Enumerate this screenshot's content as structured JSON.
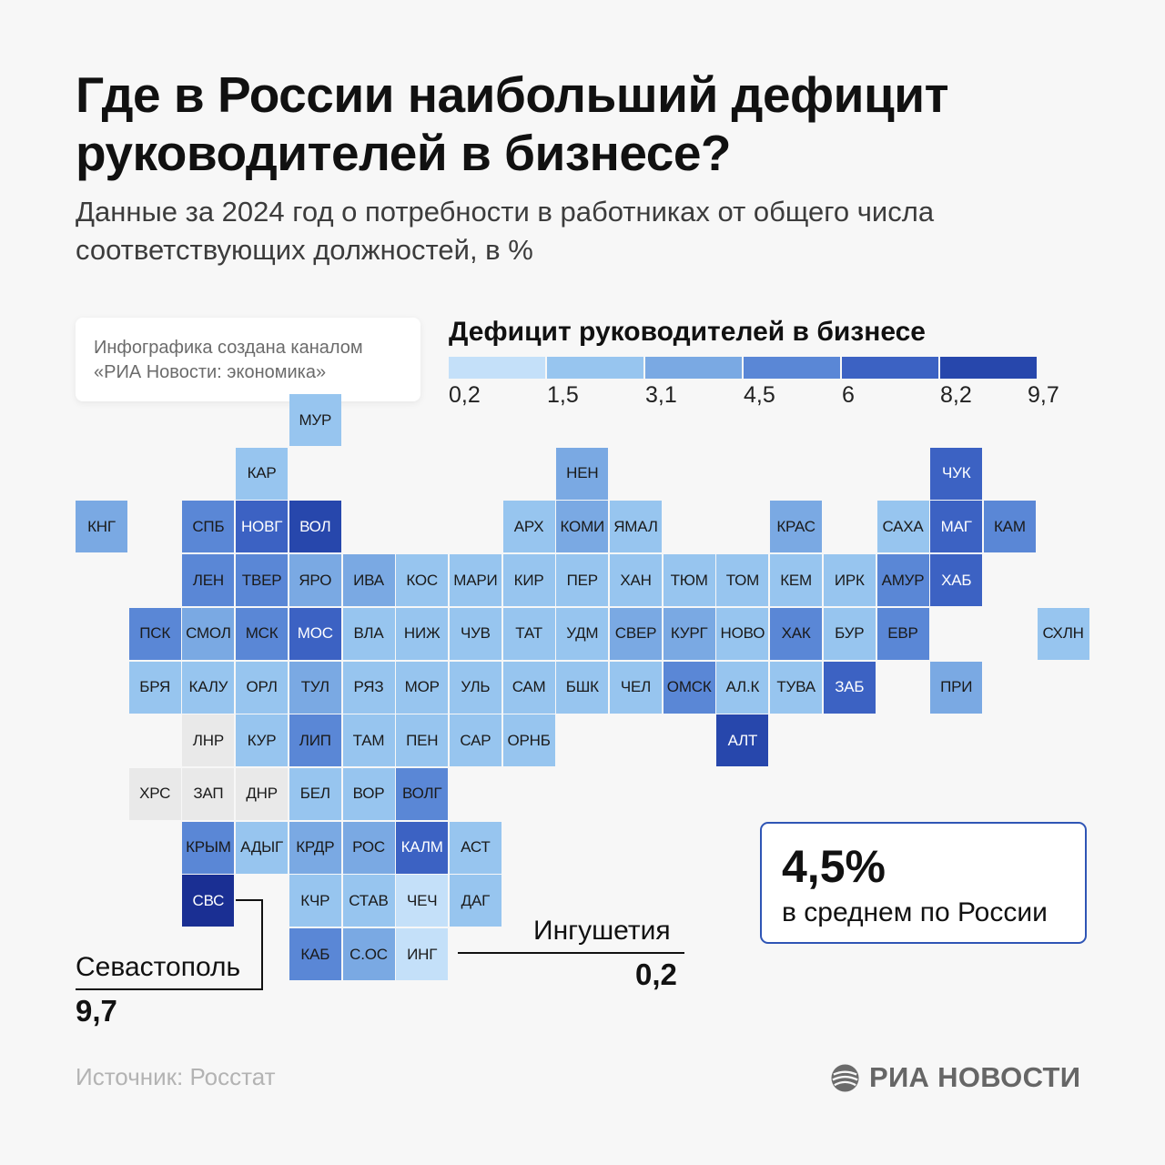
{
  "title": "Где в России наибольший дефицит руководителей в бизнесе?",
  "subtitle": "Данные за 2024 год о потребности в работниках от общего числа соответствующих должностей, в %",
  "credit": "Инфографика создана каналом «РИА Новости: экономика»",
  "legend": {
    "title": "Дефицит руководителей в бизнесе",
    "breaks": [
      "0,2",
      "1,5",
      "3,1",
      "4,5",
      "6",
      "8,2",
      "9,7"
    ],
    "colors": [
      "#c4e0f9",
      "#97c5ef",
      "#7aa9e3",
      "#5a87d6",
      "#3c62c3",
      "#2747ac",
      "#1a2f93"
    ],
    "no_data_color": "#e9e9e9"
  },
  "chart_data": {
    "type": "tile-map",
    "value_unit": "%",
    "scale_breaks": [
      0.2,
      1.5,
      3.1,
      4.5,
      6,
      8.2,
      9.7
    ],
    "regions": [
      {
        "code": "МУР",
        "row": 0,
        "col": 4,
        "bin": 1
      },
      {
        "code": "КАР",
        "row": 1,
        "col": 3,
        "bin": 1
      },
      {
        "code": "НЕН",
        "row": 1,
        "col": 9,
        "bin": 2
      },
      {
        "code": "ЧУК",
        "row": 1,
        "col": 16,
        "bin": 4
      },
      {
        "code": "КНГ",
        "row": 2,
        "col": 0,
        "bin": 2
      },
      {
        "code": "СПБ",
        "row": 2,
        "col": 2,
        "bin": 3
      },
      {
        "code": "НОВГ",
        "row": 2,
        "col": 3,
        "bin": 4
      },
      {
        "code": "ВОЛ",
        "row": 2,
        "col": 4,
        "bin": 5
      },
      {
        "code": "АРХ",
        "row": 2,
        "col": 8,
        "bin": 1
      },
      {
        "code": "КОМИ",
        "row": 2,
        "col": 9,
        "bin": 2
      },
      {
        "code": "ЯМАЛ",
        "row": 2,
        "col": 10,
        "bin": 1
      },
      {
        "code": "КРАС",
        "row": 2,
        "col": 13,
        "bin": 2
      },
      {
        "code": "САХА",
        "row": 2,
        "col": 15,
        "bin": 1
      },
      {
        "code": "МАГ",
        "row": 2,
        "col": 16,
        "bin": 4
      },
      {
        "code": "КАМ",
        "row": 2,
        "col": 17,
        "bin": 3
      },
      {
        "code": "ЛЕН",
        "row": 3,
        "col": 2,
        "bin": 3
      },
      {
        "code": "ТВЕР",
        "row": 3,
        "col": 3,
        "bin": 3
      },
      {
        "code": "ЯРО",
        "row": 3,
        "col": 4,
        "bin": 2
      },
      {
        "code": "ИВА",
        "row": 3,
        "col": 5,
        "bin": 2
      },
      {
        "code": "КОС",
        "row": 3,
        "col": 6,
        "bin": 1
      },
      {
        "code": "МАРИ",
        "row": 3,
        "col": 7,
        "bin": 1
      },
      {
        "code": "КИР",
        "row": 3,
        "col": 8,
        "bin": 1
      },
      {
        "code": "ПЕР",
        "row": 3,
        "col": 9,
        "bin": 1
      },
      {
        "code": "ХАН",
        "row": 3,
        "col": 10,
        "bin": 1
      },
      {
        "code": "ТЮМ",
        "row": 3,
        "col": 11,
        "bin": 1
      },
      {
        "code": "ТОМ",
        "row": 3,
        "col": 12,
        "bin": 1
      },
      {
        "code": "КЕМ",
        "row": 3,
        "col": 13,
        "bin": 1
      },
      {
        "code": "ИРК",
        "row": 3,
        "col": 14,
        "bin": 1
      },
      {
        "code": "АМУР",
        "row": 3,
        "col": 15,
        "bin": 3
      },
      {
        "code": "ХАБ",
        "row": 3,
        "col": 16,
        "bin": 4
      },
      {
        "code": "ПСК",
        "row": 4,
        "col": 1,
        "bin": 3
      },
      {
        "code": "СМОЛ",
        "row": 4,
        "col": 2,
        "bin": 2
      },
      {
        "code": "МСК",
        "row": 4,
        "col": 3,
        "bin": 3
      },
      {
        "code": "МОС",
        "row": 4,
        "col": 4,
        "bin": 4
      },
      {
        "code": "ВЛА",
        "row": 4,
        "col": 5,
        "bin": 1
      },
      {
        "code": "НИЖ",
        "row": 4,
        "col": 6,
        "bin": 1
      },
      {
        "code": "ЧУВ",
        "row": 4,
        "col": 7,
        "bin": 1
      },
      {
        "code": "ТАТ",
        "row": 4,
        "col": 8,
        "bin": 1
      },
      {
        "code": "УДМ",
        "row": 4,
        "col": 9,
        "bin": 1
      },
      {
        "code": "СВЕР",
        "row": 4,
        "col": 10,
        "bin": 2
      },
      {
        "code": "КУРГ",
        "row": 4,
        "col": 11,
        "bin": 2
      },
      {
        "code": "НОВО",
        "row": 4,
        "col": 12,
        "bin": 1
      },
      {
        "code": "ХАК",
        "row": 4,
        "col": 13,
        "bin": 3
      },
      {
        "code": "БУР",
        "row": 4,
        "col": 14,
        "bin": 1
      },
      {
        "code": "ЕВР",
        "row": 4,
        "col": 15,
        "bin": 3
      },
      {
        "code": "СХЛН",
        "row": 4,
        "col": 18,
        "bin": 1
      },
      {
        "code": "БРЯ",
        "row": 5,
        "col": 1,
        "bin": 1
      },
      {
        "code": "КАЛУ",
        "row": 5,
        "col": 2,
        "bin": 1
      },
      {
        "code": "ОРЛ",
        "row": 5,
        "col": 3,
        "bin": 1
      },
      {
        "code": "ТУЛ",
        "row": 5,
        "col": 4,
        "bin": 2
      },
      {
        "code": "РЯЗ",
        "row": 5,
        "col": 5,
        "bin": 1
      },
      {
        "code": "МОР",
        "row": 5,
        "col": 6,
        "bin": 1
      },
      {
        "code": "УЛЬ",
        "row": 5,
        "col": 7,
        "bin": 1
      },
      {
        "code": "САМ",
        "row": 5,
        "col": 8,
        "bin": 1
      },
      {
        "code": "БШК",
        "row": 5,
        "col": 9,
        "bin": 1
      },
      {
        "code": "ЧЕЛ",
        "row": 5,
        "col": 10,
        "bin": 1
      },
      {
        "code": "ОМСК",
        "row": 5,
        "col": 11,
        "bin": 3
      },
      {
        "code": "АЛ.К",
        "row": 5,
        "col": 12,
        "bin": 1
      },
      {
        "code": "ТУВА",
        "row": 5,
        "col": 13,
        "bin": 1
      },
      {
        "code": "ЗАБ",
        "row": 5,
        "col": 14,
        "bin": 4
      },
      {
        "code": "ПРИ",
        "row": 5,
        "col": 16,
        "bin": 2
      },
      {
        "code": "ЛНР",
        "row": 6,
        "col": 2,
        "bin": null
      },
      {
        "code": "КУР",
        "row": 6,
        "col": 3,
        "bin": 1
      },
      {
        "code": "ЛИП",
        "row": 6,
        "col": 4,
        "bin": 3
      },
      {
        "code": "ТАМ",
        "row": 6,
        "col": 5,
        "bin": 1
      },
      {
        "code": "ПЕН",
        "row": 6,
        "col": 6,
        "bin": 1
      },
      {
        "code": "САР",
        "row": 6,
        "col": 7,
        "bin": 1
      },
      {
        "code": "ОРНБ",
        "row": 6,
        "col": 8,
        "bin": 1
      },
      {
        "code": "АЛТ",
        "row": 6,
        "col": 12,
        "bin": 5
      },
      {
        "code": "ХРС",
        "row": 7,
        "col": 1,
        "bin": null
      },
      {
        "code": "ЗАП",
        "row": 7,
        "col": 2,
        "bin": null
      },
      {
        "code": "ДНР",
        "row": 7,
        "col": 3,
        "bin": null
      },
      {
        "code": "БЕЛ",
        "row": 7,
        "col": 4,
        "bin": 1
      },
      {
        "code": "ВОР",
        "row": 7,
        "col": 5,
        "bin": 1
      },
      {
        "code": "ВОЛГ",
        "row": 7,
        "col": 6,
        "bin": 3
      },
      {
        "code": "КРЫМ",
        "row": 8,
        "col": 2,
        "bin": 3
      },
      {
        "code": "АДЫГ",
        "row": 8,
        "col": 3,
        "bin": 1
      },
      {
        "code": "КРДР",
        "row": 8,
        "col": 4,
        "bin": 2
      },
      {
        "code": "РОС",
        "row": 8,
        "col": 5,
        "bin": 2
      },
      {
        "code": "КАЛМ",
        "row": 8,
        "col": 6,
        "bin": 4
      },
      {
        "code": "АСТ",
        "row": 8,
        "col": 7,
        "bin": 1
      },
      {
        "code": "СВС",
        "row": 9,
        "col": 2,
        "bin": 6
      },
      {
        "code": "КЧР",
        "row": 9,
        "col": 4,
        "bin": 1
      },
      {
        "code": "СТАВ",
        "row": 9,
        "col": 5,
        "bin": 1
      },
      {
        "code": "ЧЕЧ",
        "row": 9,
        "col": 6,
        "bin": 0
      },
      {
        "code": "ДАГ",
        "row": 9,
        "col": 7,
        "bin": 1
      },
      {
        "code": "КАБ",
        "row": 10,
        "col": 4,
        "bin": 3
      },
      {
        "code": "С.ОС",
        "row": 10,
        "col": 5,
        "bin": 2
      },
      {
        "code": "ИНГ",
        "row": 10,
        "col": 6,
        "bin": 0
      }
    ]
  },
  "callouts": {
    "sevastopol": {
      "name": "Севастополь",
      "value": "9,7"
    },
    "ingushetia": {
      "name": "Ингушетия",
      "value": "0,2"
    }
  },
  "average": {
    "value": "4,5%",
    "label": "в среднем по России"
  },
  "source": "Источник: Росстат",
  "brand": "РИА НОВОСТИ"
}
